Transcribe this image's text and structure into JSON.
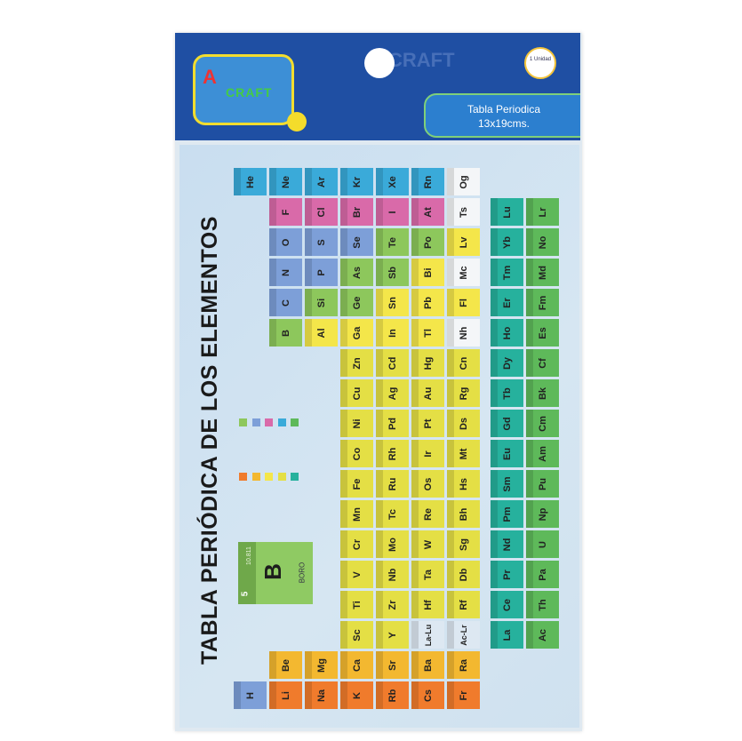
{
  "header": {
    "brand_logo": "Art & Craft",
    "unit_badge": "1 Unidad",
    "product_label_line1": "Tabla Periodica",
    "product_label_line2": "13x19cms.",
    "background_mark": "CRAFT"
  },
  "sheet": {
    "title": "TABLA PERIÓDICA DE LOS ELEMENTOS",
    "key_example": {
      "number": "5",
      "mass": "10.811",
      "symbol": "B",
      "name": "BORO"
    }
  },
  "colors": {
    "alkali": "#f07b2c",
    "alkaline": "#f3b830",
    "transition": "#e4df45",
    "post": "#f4e64a",
    "metalloid": "#8dc75c",
    "nonmetal": "#7d9fd8",
    "halogen": "#d96aa9",
    "noble": "#3aaad9",
    "unknown": "#f4f6f8",
    "lanthanide": "#26b19d",
    "actinide": "#5eb95a",
    "placeholder": "#dde8f2"
  },
  "legend_swatches": [
    "metalloid",
    "nonmetal",
    "halogen",
    "noble",
    "actinide",
    "alkali",
    "alkaline",
    "post",
    "transition",
    "lanthanide"
  ],
  "elements": [
    {
      "s": "H",
      "p": 1,
      "g": 1,
      "c": "nonmetal"
    },
    {
      "s": "He",
      "p": 1,
      "g": 18,
      "c": "noble"
    },
    {
      "s": "Li",
      "p": 2,
      "g": 1,
      "c": "alkali"
    },
    {
      "s": "Be",
      "p": 2,
      "g": 2,
      "c": "alkaline"
    },
    {
      "s": "B",
      "p": 2,
      "g": 13,
      "c": "metalloid"
    },
    {
      "s": "C",
      "p": 2,
      "g": 14,
      "c": "nonmetal"
    },
    {
      "s": "N",
      "p": 2,
      "g": 15,
      "c": "nonmetal"
    },
    {
      "s": "O",
      "p": 2,
      "g": 16,
      "c": "nonmetal"
    },
    {
      "s": "F",
      "p": 2,
      "g": 17,
      "c": "halogen"
    },
    {
      "s": "Ne",
      "p": 2,
      "g": 18,
      "c": "noble"
    },
    {
      "s": "Na",
      "p": 3,
      "g": 1,
      "c": "alkali"
    },
    {
      "s": "Mg",
      "p": 3,
      "g": 2,
      "c": "alkaline"
    },
    {
      "s": "Al",
      "p": 3,
      "g": 13,
      "c": "post"
    },
    {
      "s": "Si",
      "p": 3,
      "g": 14,
      "c": "metalloid"
    },
    {
      "s": "P",
      "p": 3,
      "g": 15,
      "c": "nonmetal"
    },
    {
      "s": "S",
      "p": 3,
      "g": 16,
      "c": "nonmetal"
    },
    {
      "s": "Cl",
      "p": 3,
      "g": 17,
      "c": "halogen"
    },
    {
      "s": "Ar",
      "p": 3,
      "g": 18,
      "c": "noble"
    },
    {
      "s": "K",
      "p": 4,
      "g": 1,
      "c": "alkali"
    },
    {
      "s": "Ca",
      "p": 4,
      "g": 2,
      "c": "alkaline"
    },
    {
      "s": "Sc",
      "p": 4,
      "g": 3,
      "c": "transition"
    },
    {
      "s": "Ti",
      "p": 4,
      "g": 4,
      "c": "transition"
    },
    {
      "s": "V",
      "p": 4,
      "g": 5,
      "c": "transition"
    },
    {
      "s": "Cr",
      "p": 4,
      "g": 6,
      "c": "transition"
    },
    {
      "s": "Mn",
      "p": 4,
      "g": 7,
      "c": "transition"
    },
    {
      "s": "Fe",
      "p": 4,
      "g": 8,
      "c": "transition"
    },
    {
      "s": "Co",
      "p": 4,
      "g": 9,
      "c": "transition"
    },
    {
      "s": "Ni",
      "p": 4,
      "g": 10,
      "c": "transition"
    },
    {
      "s": "Cu",
      "p": 4,
      "g": 11,
      "c": "transition"
    },
    {
      "s": "Zn",
      "p": 4,
      "g": 12,
      "c": "transition"
    },
    {
      "s": "Ga",
      "p": 4,
      "g": 13,
      "c": "post"
    },
    {
      "s": "Ge",
      "p": 4,
      "g": 14,
      "c": "metalloid"
    },
    {
      "s": "As",
      "p": 4,
      "g": 15,
      "c": "metalloid"
    },
    {
      "s": "Se",
      "p": 4,
      "g": 16,
      "c": "nonmetal"
    },
    {
      "s": "Br",
      "p": 4,
      "g": 17,
      "c": "halogen"
    },
    {
      "s": "Kr",
      "p": 4,
      "g": 18,
      "c": "noble"
    },
    {
      "s": "Rb",
      "p": 5,
      "g": 1,
      "c": "alkali"
    },
    {
      "s": "Sr",
      "p": 5,
      "g": 2,
      "c": "alkaline"
    },
    {
      "s": "Y",
      "p": 5,
      "g": 3,
      "c": "transition"
    },
    {
      "s": "Zr",
      "p": 5,
      "g": 4,
      "c": "transition"
    },
    {
      "s": "Nb",
      "p": 5,
      "g": 5,
      "c": "transition"
    },
    {
      "s": "Mo",
      "p": 5,
      "g": 6,
      "c": "transition"
    },
    {
      "s": "Tc",
      "p": 5,
      "g": 7,
      "c": "transition"
    },
    {
      "s": "Ru",
      "p": 5,
      "g": 8,
      "c": "transition"
    },
    {
      "s": "Rh",
      "p": 5,
      "g": 9,
      "c": "transition"
    },
    {
      "s": "Pd",
      "p": 5,
      "g": 10,
      "c": "transition"
    },
    {
      "s": "Ag",
      "p": 5,
      "g": 11,
      "c": "transition"
    },
    {
      "s": "Cd",
      "p": 5,
      "g": 12,
      "c": "transition"
    },
    {
      "s": "In",
      "p": 5,
      "g": 13,
      "c": "post"
    },
    {
      "s": "Sn",
      "p": 5,
      "g": 14,
      "c": "post"
    },
    {
      "s": "Sb",
      "p": 5,
      "g": 15,
      "c": "metalloid"
    },
    {
      "s": "Te",
      "p": 5,
      "g": 16,
      "c": "metalloid"
    },
    {
      "s": "I",
      "p": 5,
      "g": 17,
      "c": "halogen"
    },
    {
      "s": "Xe",
      "p": 5,
      "g": 18,
      "c": "noble"
    },
    {
      "s": "Cs",
      "p": 6,
      "g": 1,
      "c": "alkali"
    },
    {
      "s": "Ba",
      "p": 6,
      "g": 2,
      "c": "alkaline"
    },
    {
      "s": "La-Lu",
      "p": 6,
      "g": 3,
      "c": "placeholder"
    },
    {
      "s": "Hf",
      "p": 6,
      "g": 4,
      "c": "transition"
    },
    {
      "s": "Ta",
      "p": 6,
      "g": 5,
      "c": "transition"
    },
    {
      "s": "W",
      "p": 6,
      "g": 6,
      "c": "transition"
    },
    {
      "s": "Re",
      "p": 6,
      "g": 7,
      "c": "transition"
    },
    {
      "s": "Os",
      "p": 6,
      "g": 8,
      "c": "transition"
    },
    {
      "s": "Ir",
      "p": 6,
      "g": 9,
      "c": "transition"
    },
    {
      "s": "Pt",
      "p": 6,
      "g": 10,
      "c": "transition"
    },
    {
      "s": "Au",
      "p": 6,
      "g": 11,
      "c": "transition"
    },
    {
      "s": "Hg",
      "p": 6,
      "g": 12,
      "c": "transition"
    },
    {
      "s": "Tl",
      "p": 6,
      "g": 13,
      "c": "post"
    },
    {
      "s": "Pb",
      "p": 6,
      "g": 14,
      "c": "post"
    },
    {
      "s": "Bi",
      "p": 6,
      "g": 15,
      "c": "post"
    },
    {
      "s": "Po",
      "p": 6,
      "g": 16,
      "c": "metalloid"
    },
    {
      "s": "At",
      "p": 6,
      "g": 17,
      "c": "halogen"
    },
    {
      "s": "Rn",
      "p": 6,
      "g": 18,
      "c": "noble"
    },
    {
      "s": "Fr",
      "p": 7,
      "g": 1,
      "c": "alkali"
    },
    {
      "s": "Ra",
      "p": 7,
      "g": 2,
      "c": "alkaline"
    },
    {
      "s": "Ac-Lr",
      "p": 7,
      "g": 3,
      "c": "placeholder"
    },
    {
      "s": "Rf",
      "p": 7,
      "g": 4,
      "c": "transition"
    },
    {
      "s": "Db",
      "p": 7,
      "g": 5,
      "c": "transition"
    },
    {
      "s": "Sg",
      "p": 7,
      "g": 6,
      "c": "transition"
    },
    {
      "s": "Bh",
      "p": 7,
      "g": 7,
      "c": "transition"
    },
    {
      "s": "Hs",
      "p": 7,
      "g": 8,
      "c": "transition"
    },
    {
      "s": "Mt",
      "p": 7,
      "g": 9,
      "c": "transition"
    },
    {
      "s": "Ds",
      "p": 7,
      "g": 10,
      "c": "transition"
    },
    {
      "s": "Rg",
      "p": 7,
      "g": 11,
      "c": "transition"
    },
    {
      "s": "Cn",
      "p": 7,
      "g": 12,
      "c": "transition"
    },
    {
      "s": "Nh",
      "p": 7,
      "g": 13,
      "c": "unknown"
    },
    {
      "s": "Fl",
      "p": 7,
      "g": 14,
      "c": "post"
    },
    {
      "s": "Mc",
      "p": 7,
      "g": 15,
      "c": "unknown"
    },
    {
      "s": "Lv",
      "p": 7,
      "g": 16,
      "c": "post"
    },
    {
      "s": "Ts",
      "p": 7,
      "g": 17,
      "c": "unknown"
    },
    {
      "s": "Og",
      "p": 7,
      "g": 18,
      "c": "unknown"
    }
  ],
  "lanthanides": [
    "La",
    "Ce",
    "Pr",
    "Nd",
    "Pm",
    "Sm",
    "Eu",
    "Gd",
    "Tb",
    "Dy",
    "Ho",
    "Er",
    "Tm",
    "Yb",
    "Lu"
  ],
  "actinides": [
    "Ac",
    "Th",
    "Pa",
    "U",
    "Np",
    "Pu",
    "Am",
    "Cm",
    "Bk",
    "Cf",
    "Es",
    "Fm",
    "Md",
    "No",
    "Lr"
  ]
}
